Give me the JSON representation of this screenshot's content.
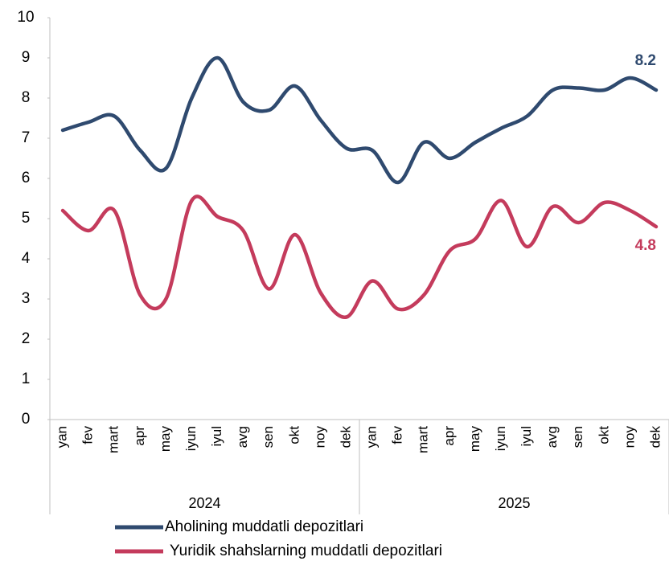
{
  "chart_data": {
    "type": "line",
    "categories": [
      "yan",
      "fev",
      "mart",
      "apr",
      "may",
      "iyun",
      "iyul",
      "avg",
      "sen",
      "okt",
      "noy",
      "dek",
      "yan",
      "fev",
      "mart",
      "apr",
      "may",
      "iyun",
      "iyul",
      "avg",
      "sen",
      "okt",
      "noy",
      "dek"
    ],
    "x_groups": [
      "2024",
      "2025"
    ],
    "series": [
      {
        "name": "Aholining muddatli depozitlari",
        "color": "#2f4a6f",
        "values": [
          7.2,
          7.4,
          7.55,
          6.7,
          6.25,
          8.0,
          9.0,
          7.9,
          7.7,
          8.3,
          7.45,
          6.75,
          6.7,
          5.9,
          6.9,
          6.5,
          6.9,
          7.25,
          7.55,
          8.2,
          8.25,
          8.2,
          8.5,
          8.2
        ]
      },
      {
        "name": "Yuridik shahslarning muddatli depozitlari",
        "color": "#c43b5c",
        "values": [
          5.2,
          4.7,
          5.2,
          3.1,
          3.0,
          5.45,
          5.05,
          4.7,
          3.25,
          4.6,
          3.15,
          2.55,
          3.45,
          2.75,
          3.1,
          4.2,
          4.5,
          5.45,
          4.3,
          5.3,
          4.9,
          5.4,
          5.2,
          4.8
        ]
      }
    ],
    "ylim": [
      0,
      10
    ],
    "yticks": [
      0,
      1,
      2,
      3,
      4,
      5,
      6,
      7,
      8,
      9,
      10
    ],
    "grid": false
  }
}
